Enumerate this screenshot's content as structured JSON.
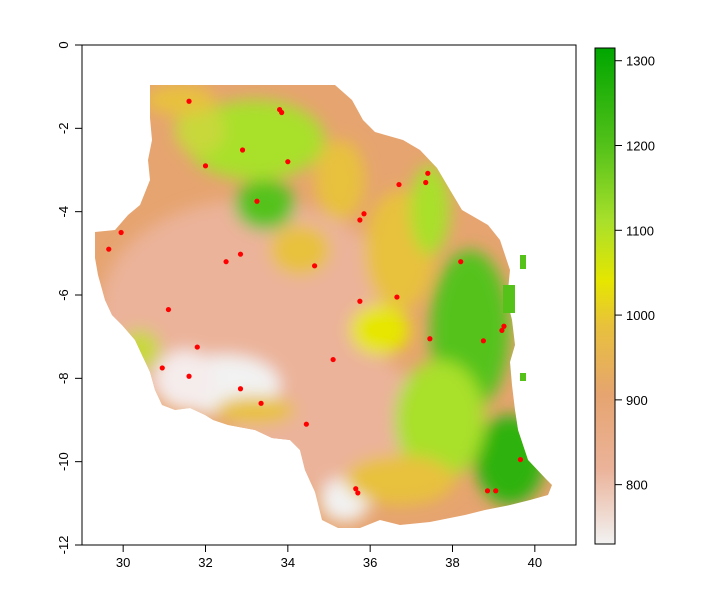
{
  "chart_data": {
    "type": "heatmap",
    "title": "",
    "xlabel": "",
    "ylabel": "",
    "xlim": [
      29,
      41
    ],
    "ylim": [
      -12,
      0
    ],
    "x_ticks": [
      "30",
      "32",
      "34",
      "36",
      "38",
      "40"
    ],
    "y_ticks": [
      "0",
      "-2",
      "-4",
      "-6",
      "-8",
      "-10",
      "-12"
    ],
    "legend": {
      "placement": "right",
      "ticks": [
        "800",
        "900",
        "1000",
        "1100",
        "1200",
        "1300"
      ],
      "range": [
        730,
        1315
      ],
      "palette": [
        "#f2f2f2",
        "#ebb39a",
        "#e6a470",
        "#e8c13c",
        "#e6e600",
        "#a9e02b",
        "#55c21a",
        "#00a600"
      ]
    },
    "point_color": "#ff0000",
    "points": [
      [
        31.6,
        -1.35
      ],
      [
        33.8,
        -1.55
      ],
      [
        33.85,
        -1.62
      ],
      [
        32.0,
        -2.9
      ],
      [
        32.9,
        -2.52
      ],
      [
        34.0,
        -2.8
      ],
      [
        33.25,
        -3.75
      ],
      [
        36.7,
        -3.35
      ],
      [
        37.35,
        -3.3
      ],
      [
        37.4,
        -3.08
      ],
      [
        35.85,
        -4.05
      ],
      [
        35.75,
        -4.2
      ],
      [
        29.65,
        -4.9
      ],
      [
        29.95,
        -4.5
      ],
      [
        32.5,
        -5.2
      ],
      [
        32.85,
        -5.02
      ],
      [
        34.65,
        -5.3
      ],
      [
        38.2,
        -5.2
      ],
      [
        36.65,
        -6.05
      ],
      [
        35.75,
        -6.15
      ],
      [
        31.1,
        -6.35
      ],
      [
        39.25,
        -6.75
      ],
      [
        39.2,
        -6.85
      ],
      [
        38.75,
        -7.1
      ],
      [
        37.45,
        -7.05
      ],
      [
        31.8,
        -7.25
      ],
      [
        30.95,
        -7.75
      ],
      [
        31.6,
        -7.95
      ],
      [
        35.1,
        -7.55
      ],
      [
        32.85,
        -8.25
      ],
      [
        33.35,
        -8.6
      ],
      [
        34.45,
        -9.1
      ],
      [
        35.65,
        -10.65
      ],
      [
        35.7,
        -10.75
      ],
      [
        39.65,
        -9.95
      ],
      [
        38.85,
        -10.7
      ],
      [
        39.05,
        -10.7
      ]
    ]
  }
}
